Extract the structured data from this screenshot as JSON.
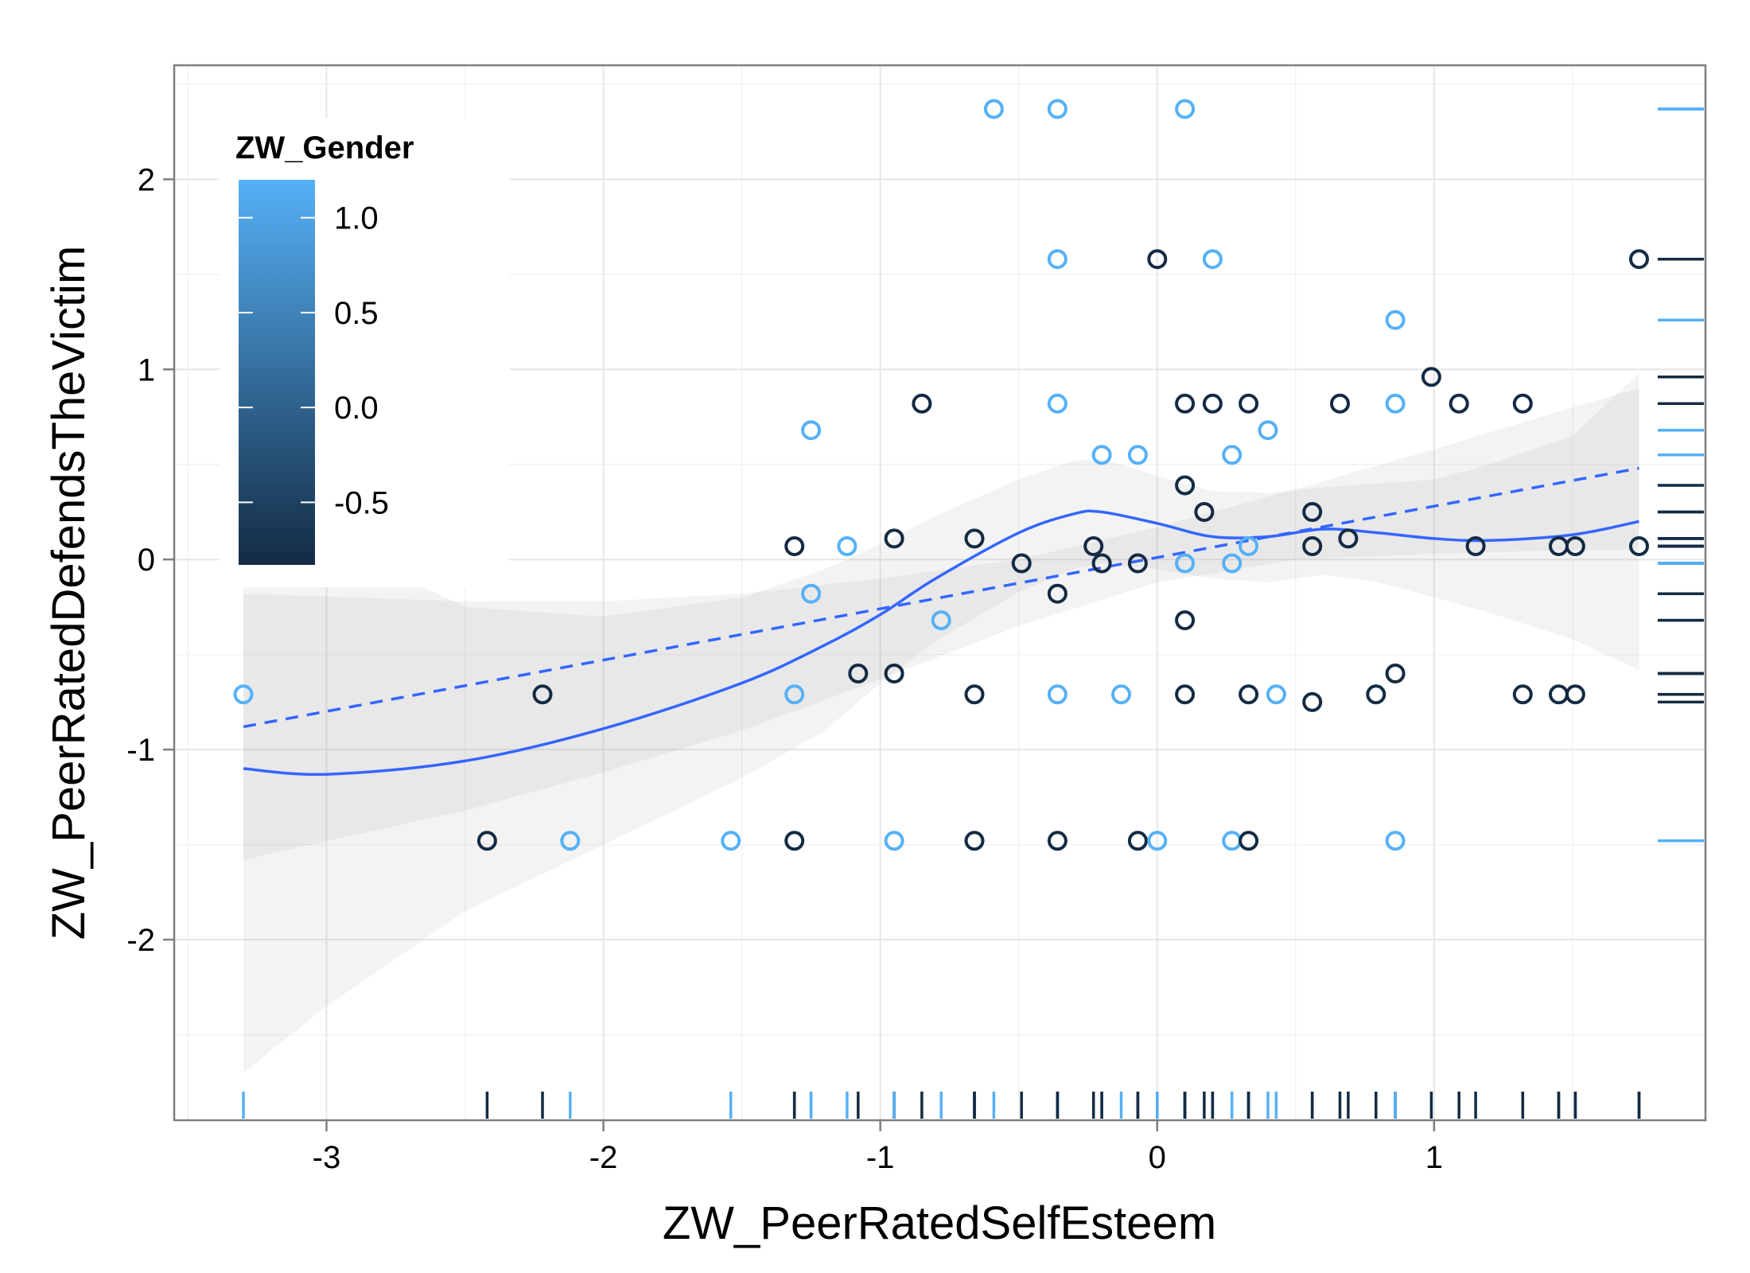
{
  "chart_data": {
    "type": "scatter",
    "xlabel": "ZW_PeerRatedSelfEsteem",
    "ylabel": "ZW_PeerRatedDefendsTheVictim",
    "xlim": [
      -3.55,
      1.98
    ],
    "ylim": [
      -2.95,
      2.6
    ],
    "x_ticks": [
      -3,
      -2,
      -1,
      0,
      1
    ],
    "x_tick_labels": [
      "-3",
      "-2",
      "-1",
      "0",
      "1"
    ],
    "y_ticks": [
      -2,
      -1,
      0,
      1,
      2
    ],
    "y_tick_labels": [
      "-2",
      "-1",
      "0",
      "1",
      "2"
    ],
    "grid": true,
    "legend": {
      "title": "ZW_Gender",
      "placement": "top-left inside",
      "ticks": [
        1.0,
        0.5,
        0.0,
        -0.5
      ],
      "tick_labels": [
        "1.0",
        "0.5",
        "0.0",
        "-0.5"
      ],
      "range": [
        -0.83,
        1.2
      ],
      "color_low": "#132B43",
      "color_high": "#56B1F7"
    },
    "colors": {
      "light_gender": "#56B1F7",
      "dark_gender": "#132B43",
      "smooth_line": "#3366FF",
      "ribbon": "#999999"
    },
    "points": [
      {
        "x": -3.3,
        "y": -0.71,
        "g": 1.2
      },
      {
        "x": -2.42,
        "y": -1.48,
        "g": -0.83
      },
      {
        "x": -2.22,
        "y": -0.71,
        "g": -0.83
      },
      {
        "x": -2.12,
        "y": -1.48,
        "g": 1.2
      },
      {
        "x": -1.54,
        "y": -1.48,
        "g": 1.2
      },
      {
        "x": -1.31,
        "y": 0.07,
        "g": -0.83
      },
      {
        "x": -1.31,
        "y": -0.71,
        "g": 1.2
      },
      {
        "x": -1.31,
        "y": -1.48,
        "g": -0.83
      },
      {
        "x": -1.25,
        "y": 0.68,
        "g": 1.2
      },
      {
        "x": -1.25,
        "y": -0.18,
        "g": 1.2
      },
      {
        "x": -1.12,
        "y": 0.07,
        "g": 1.2
      },
      {
        "x": -1.08,
        "y": -0.6,
        "g": -0.83
      },
      {
        "x": -0.95,
        "y": 0.11,
        "g": -0.83
      },
      {
        "x": -0.95,
        "y": -0.6,
        "g": -0.83
      },
      {
        "x": -0.95,
        "y": -1.48,
        "g": 1.2
      },
      {
        "x": -0.85,
        "y": 0.82,
        "g": -0.83
      },
      {
        "x": -0.78,
        "y": -0.32,
        "g": 1.2
      },
      {
        "x": -0.66,
        "y": 0.11,
        "g": -0.83
      },
      {
        "x": -0.66,
        "y": -0.71,
        "g": -0.83
      },
      {
        "x": -0.66,
        "y": -1.48,
        "g": -0.83
      },
      {
        "x": -0.59,
        "y": 2.37,
        "g": 1.2
      },
      {
        "x": -0.49,
        "y": -0.02,
        "g": -0.83
      },
      {
        "x": -0.36,
        "y": 2.37,
        "g": 1.2
      },
      {
        "x": -0.36,
        "y": 1.58,
        "g": 1.2
      },
      {
        "x": -0.36,
        "y": 0.82,
        "g": 1.2
      },
      {
        "x": -0.36,
        "y": -0.18,
        "g": -0.83
      },
      {
        "x": -0.36,
        "y": -0.71,
        "g": 1.2
      },
      {
        "x": -0.36,
        "y": -1.48,
        "g": -0.83
      },
      {
        "x": -0.23,
        "y": 0.07,
        "g": -0.83
      },
      {
        "x": -0.2,
        "y": 0.55,
        "g": 1.2
      },
      {
        "x": -0.2,
        "y": -0.02,
        "g": -0.83
      },
      {
        "x": -0.13,
        "y": -0.71,
        "g": 1.2
      },
      {
        "x": -0.07,
        "y": 0.55,
        "g": 1.2
      },
      {
        "x": -0.07,
        "y": -0.02,
        "g": -0.83
      },
      {
        "x": -0.07,
        "y": -1.48,
        "g": -0.83
      },
      {
        "x": 0.0,
        "y": 1.58,
        "g": -0.83
      },
      {
        "x": 0.0,
        "y": -1.48,
        "g": 1.2
      },
      {
        "x": 0.1,
        "y": 2.37,
        "g": 1.2
      },
      {
        "x": 0.1,
        "y": 0.82,
        "g": -0.83
      },
      {
        "x": 0.1,
        "y": 0.39,
        "g": -0.83
      },
      {
        "x": 0.1,
        "y": -0.02,
        "g": 1.2
      },
      {
        "x": 0.1,
        "y": -0.32,
        "g": -0.83
      },
      {
        "x": 0.1,
        "y": -0.71,
        "g": -0.83
      },
      {
        "x": 0.17,
        "y": 0.25,
        "g": -0.83
      },
      {
        "x": 0.2,
        "y": 1.58,
        "g": 1.2
      },
      {
        "x": 0.2,
        "y": 0.82,
        "g": -0.83
      },
      {
        "x": 0.27,
        "y": 0.55,
        "g": 1.2
      },
      {
        "x": 0.27,
        "y": -0.02,
        "g": 1.2
      },
      {
        "x": 0.27,
        "y": -1.48,
        "g": 1.2
      },
      {
        "x": 0.33,
        "y": 0.82,
        "g": -0.83
      },
      {
        "x": 0.33,
        "y": 0.07,
        "g": 1.2
      },
      {
        "x": 0.33,
        "y": -0.71,
        "g": -0.83
      },
      {
        "x": 0.33,
        "y": -1.48,
        "g": -0.83
      },
      {
        "x": 0.4,
        "y": 0.68,
        "g": 1.2
      },
      {
        "x": 0.43,
        "y": -0.71,
        "g": 1.2
      },
      {
        "x": 0.56,
        "y": 0.25,
        "g": -0.83
      },
      {
        "x": 0.56,
        "y": 0.07,
        "g": -0.83
      },
      {
        "x": 0.56,
        "y": -0.75,
        "g": -0.83
      },
      {
        "x": 0.66,
        "y": 0.82,
        "g": -0.83
      },
      {
        "x": 0.69,
        "y": 0.11,
        "g": -0.83
      },
      {
        "x": 0.79,
        "y": -0.71,
        "g": -0.83
      },
      {
        "x": 0.86,
        "y": 1.26,
        "g": 1.2
      },
      {
        "x": 0.86,
        "y": 0.82,
        "g": 1.2
      },
      {
        "x": 0.86,
        "y": -0.6,
        "g": -0.83
      },
      {
        "x": 0.86,
        "y": -1.48,
        "g": 1.2
      },
      {
        "x": 0.99,
        "y": 0.96,
        "g": -0.83
      },
      {
        "x": 1.09,
        "y": 0.82,
        "g": -0.83
      },
      {
        "x": 1.15,
        "y": 0.07,
        "g": -0.83
      },
      {
        "x": 1.32,
        "y": 0.82,
        "g": -0.83
      },
      {
        "x": 1.32,
        "y": -0.71,
        "g": -0.83
      },
      {
        "x": 1.45,
        "y": 0.07,
        "g": -0.83
      },
      {
        "x": 1.45,
        "y": -0.71,
        "g": -0.83
      },
      {
        "x": 1.51,
        "y": 0.07,
        "g": -0.83
      },
      {
        "x": 1.51,
        "y": -0.71,
        "g": -0.83
      },
      {
        "x": 1.74,
        "y": 1.58,
        "g": -0.83
      },
      {
        "x": 1.74,
        "y": 0.07,
        "g": -0.83
      }
    ],
    "linear_fit": {
      "style": "dashed",
      "x": [
        -3.3,
        1.74
      ],
      "y": [
        -0.88,
        0.48
      ]
    },
    "loess_fit": {
      "style": "solid",
      "x": [
        -3.3,
        -3.0,
        -2.5,
        -2.0,
        -1.5,
        -1.2,
        -1.0,
        -0.8,
        -0.5,
        -0.3,
        -0.2,
        0.0,
        0.2,
        0.4,
        0.6,
        0.8,
        1.0,
        1.2,
        1.5,
        1.74
      ],
      "y": [
        -1.1,
        -1.13,
        -1.06,
        -0.89,
        -0.65,
        -0.45,
        -0.29,
        -0.1,
        0.14,
        0.24,
        0.25,
        0.19,
        0.12,
        0.12,
        0.16,
        0.14,
        0.11,
        0.1,
        0.13,
        0.2
      ]
    },
    "loess_band": {
      "x": [
        -3.3,
        -3.0,
        -2.5,
        -2.0,
        -1.5,
        -1.2,
        -1.0,
        -0.8,
        -0.5,
        -0.3,
        -0.2,
        0.0,
        0.2,
        0.4,
        0.6,
        0.8,
        1.0,
        1.2,
        1.5,
        1.74
      ],
      "lower": [
        -2.7,
        -2.35,
        -1.85,
        -1.5,
        -1.15,
        -0.9,
        -0.65,
        -0.43,
        -0.17,
        -0.05,
        -0.02,
        -0.05,
        -0.1,
        -0.12,
        -0.08,
        -0.12,
        -0.2,
        -0.28,
        -0.42,
        -0.58
      ],
      "upper": [
        0.45,
        0.1,
        -0.25,
        -0.3,
        -0.2,
        -0.05,
        0.08,
        0.23,
        0.42,
        0.52,
        0.53,
        0.44,
        0.36,
        0.35,
        0.38,
        0.4,
        0.42,
        0.5,
        0.65,
        0.98
      ]
    },
    "linear_band": {
      "x": [
        -3.3,
        -2.5,
        -2.0,
        -1.5,
        -1.0,
        -0.5,
        0.0,
        0.5,
        1.0,
        1.5,
        1.74
      ],
      "lower": [
        -1.58,
        -1.32,
        -1.12,
        -0.9,
        -0.63,
        -0.35,
        -0.12,
        0.0,
        0.03,
        0.05,
        0.05
      ],
      "upper": [
        -0.18,
        -0.22,
        -0.22,
        -0.18,
        -0.1,
        0.0,
        0.17,
        0.37,
        0.58,
        0.8,
        0.9
      ]
    }
  }
}
